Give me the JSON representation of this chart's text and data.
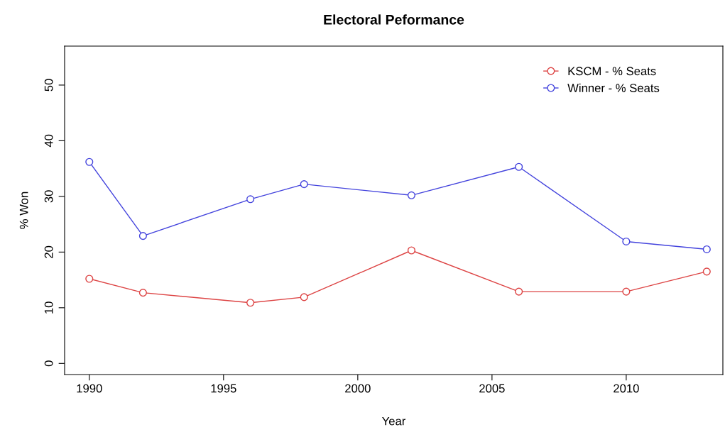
{
  "chart_data": {
    "type": "line",
    "title": "Electoral Peformance",
    "xlabel": "Year",
    "ylabel": "% Won",
    "x": [
      1990,
      1992,
      1996,
      1998,
      2002,
      2006,
      2010,
      2013
    ],
    "series": [
      {
        "name": "KSCM - % Seats",
        "color": "#dd4444",
        "values": [
          15.2,
          12.7,
          10.9,
          11.9,
          20.3,
          12.9,
          12.9,
          16.5
        ]
      },
      {
        "name": "Winner - % Seats",
        "color": "#4444dd",
        "values": [
          36.2,
          22.9,
          29.5,
          32.2,
          30.2,
          35.3,
          21.9,
          20.5
        ]
      }
    ],
    "xlim": [
      1989.08,
      2013.6
    ],
    "xticks": [
      1990,
      1995,
      2000,
      2005,
      2010
    ],
    "ylim": [
      -2,
      57
    ],
    "yticks": [
      0,
      10,
      20,
      30,
      40,
      50
    ],
    "grid": false,
    "legend": "top right",
    "marker": "circle",
    "line_style": "solid"
  }
}
